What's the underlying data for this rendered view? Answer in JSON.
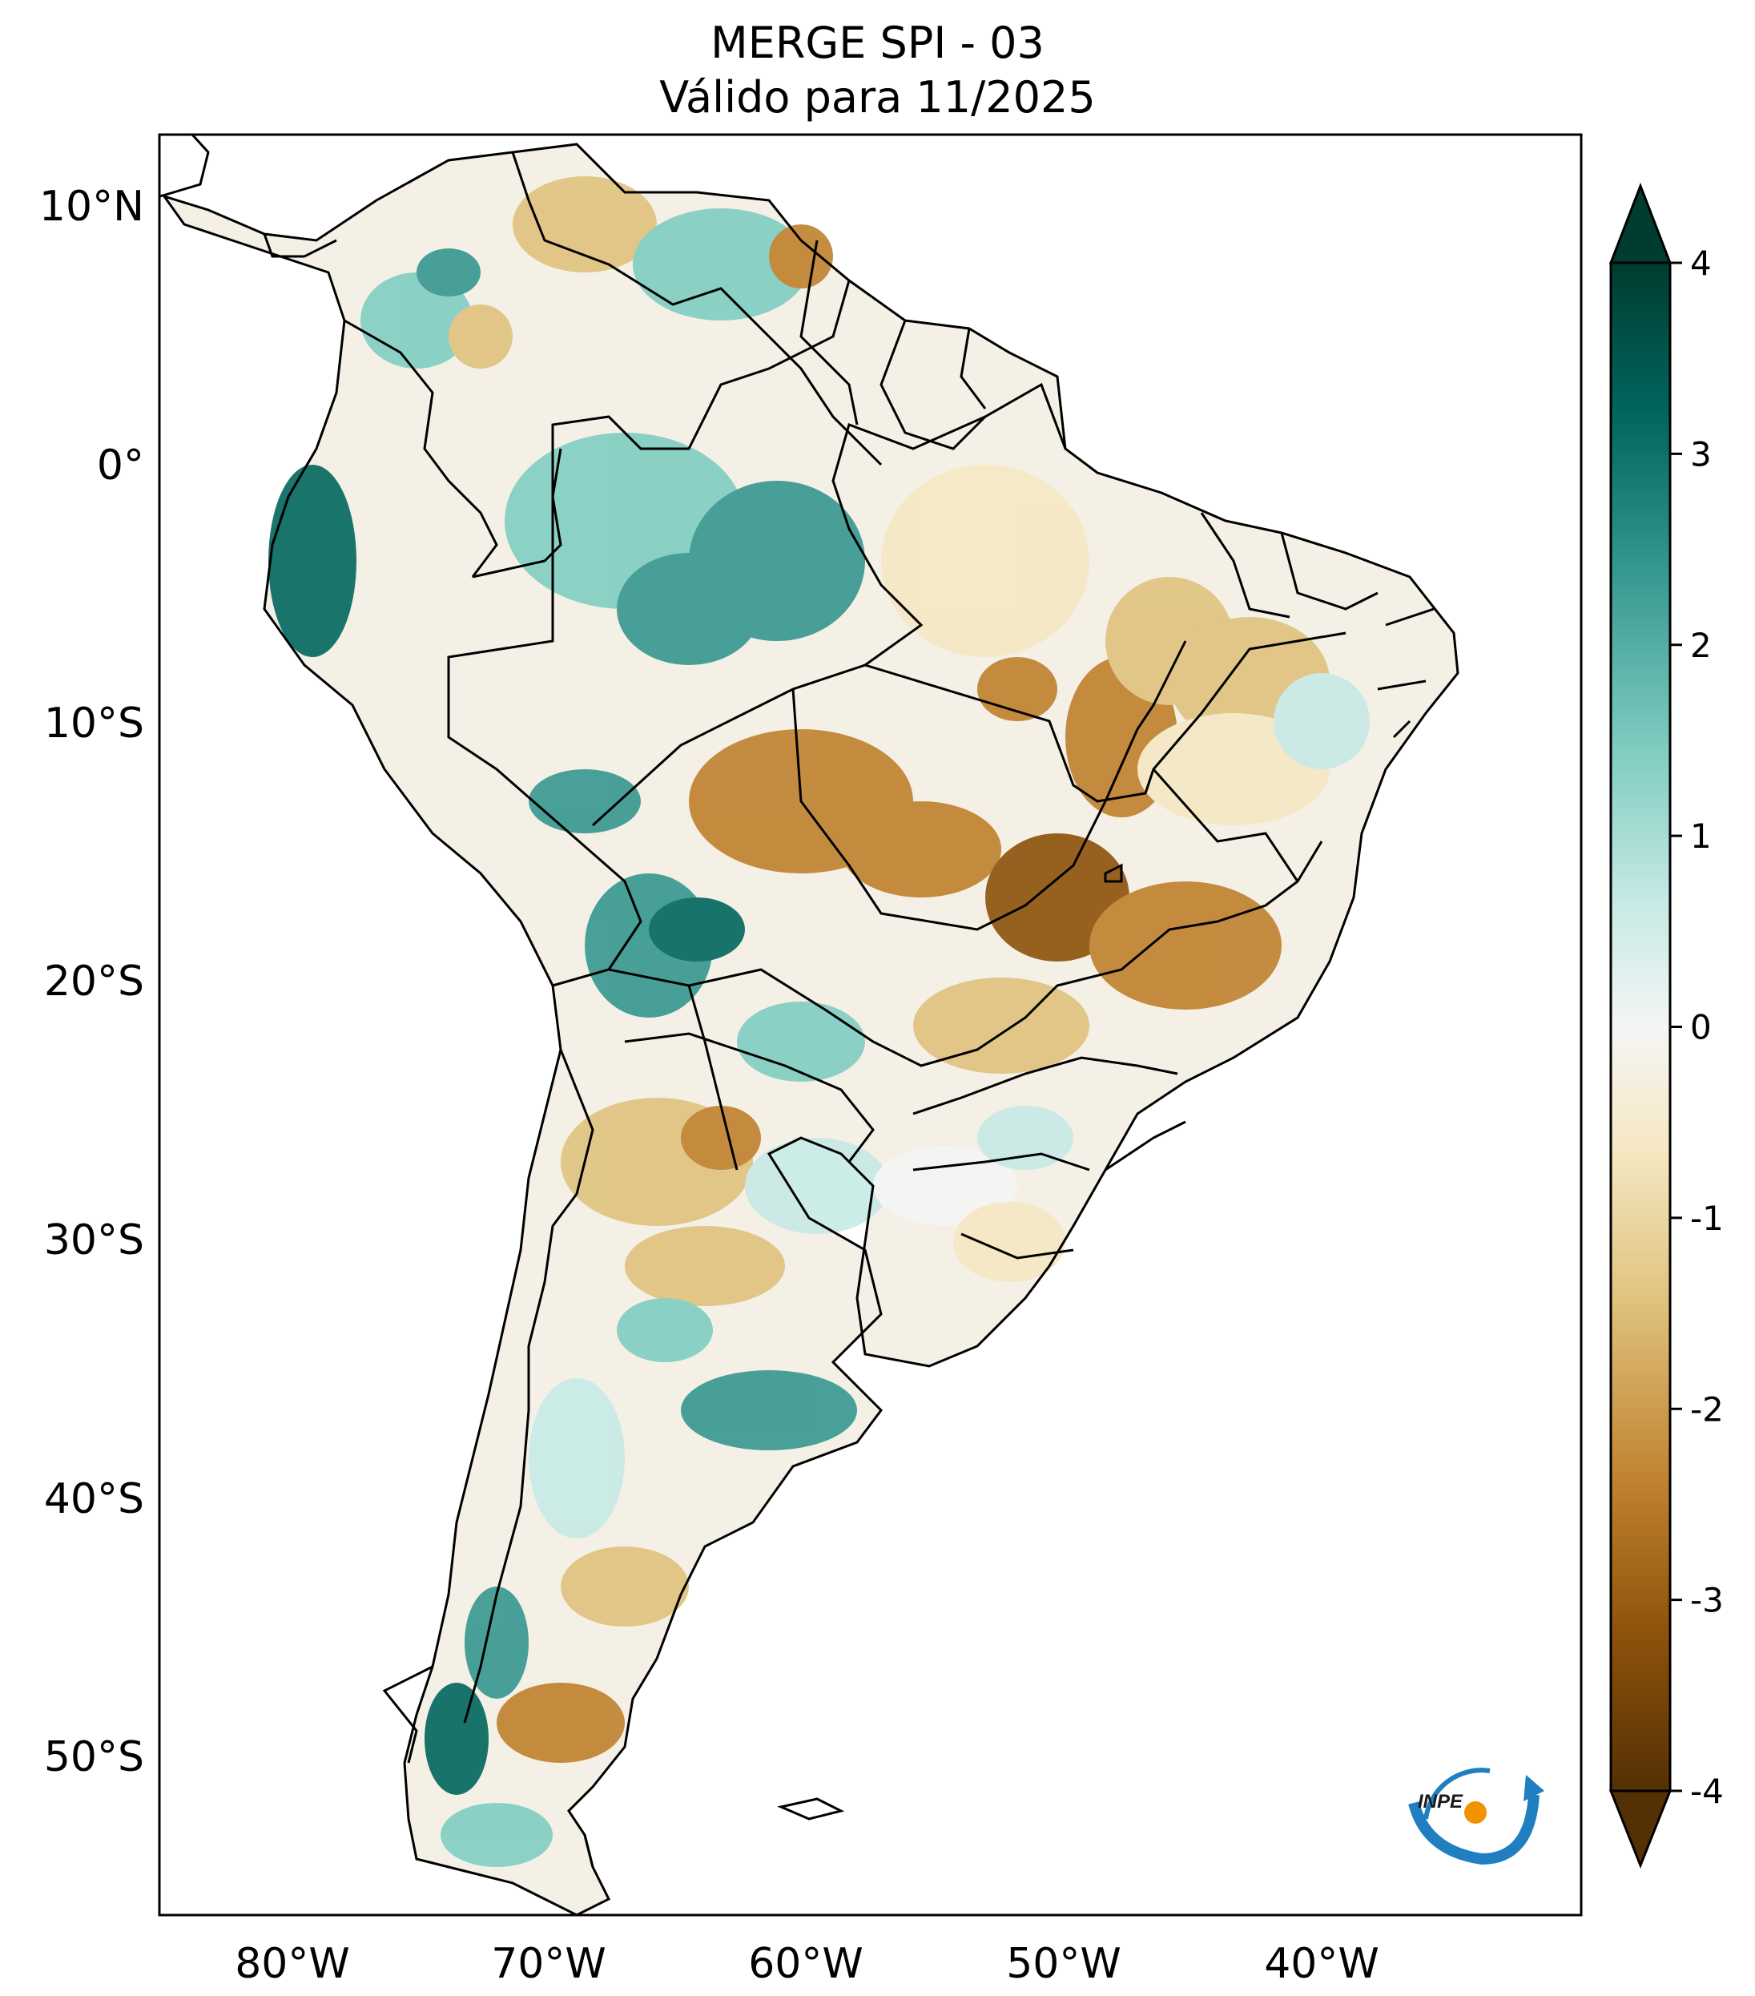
{
  "title": {
    "line1": "MERGE   SPI - 03",
    "line2": "Válido para 11/2025"
  },
  "map": {
    "region": "South America",
    "lat_labels": [
      "10°N",
      "0°",
      "10°S",
      "20°S",
      "30°S",
      "40°S",
      "50°S"
    ],
    "lon_labels": [
      "80°W",
      "70°W",
      "60°W",
      "50°W",
      "40°W"
    ]
  },
  "colorbar": {
    "min": -4,
    "max": 4,
    "tick_labels": [
      "4",
      "3",
      "2",
      "1",
      "0",
      "-1",
      "-2",
      "-3",
      "-4"
    ],
    "colormap": "BrBG",
    "colors": {
      "deep_green": "#003c30",
      "green": "#01665e",
      "teal": "#35978f",
      "light_teal": "#80cdc1",
      "pale_teal": "#c7eae5",
      "white": "#f5f5f5",
      "pale_tan": "#f6e8c3",
      "tan": "#dfc27d",
      "brown": "#bf812d",
      "dark_brown": "#8c510a",
      "deep_brown": "#543005"
    }
  },
  "logo": {
    "text": "INPE",
    "icon": "inpe-logo"
  }
}
